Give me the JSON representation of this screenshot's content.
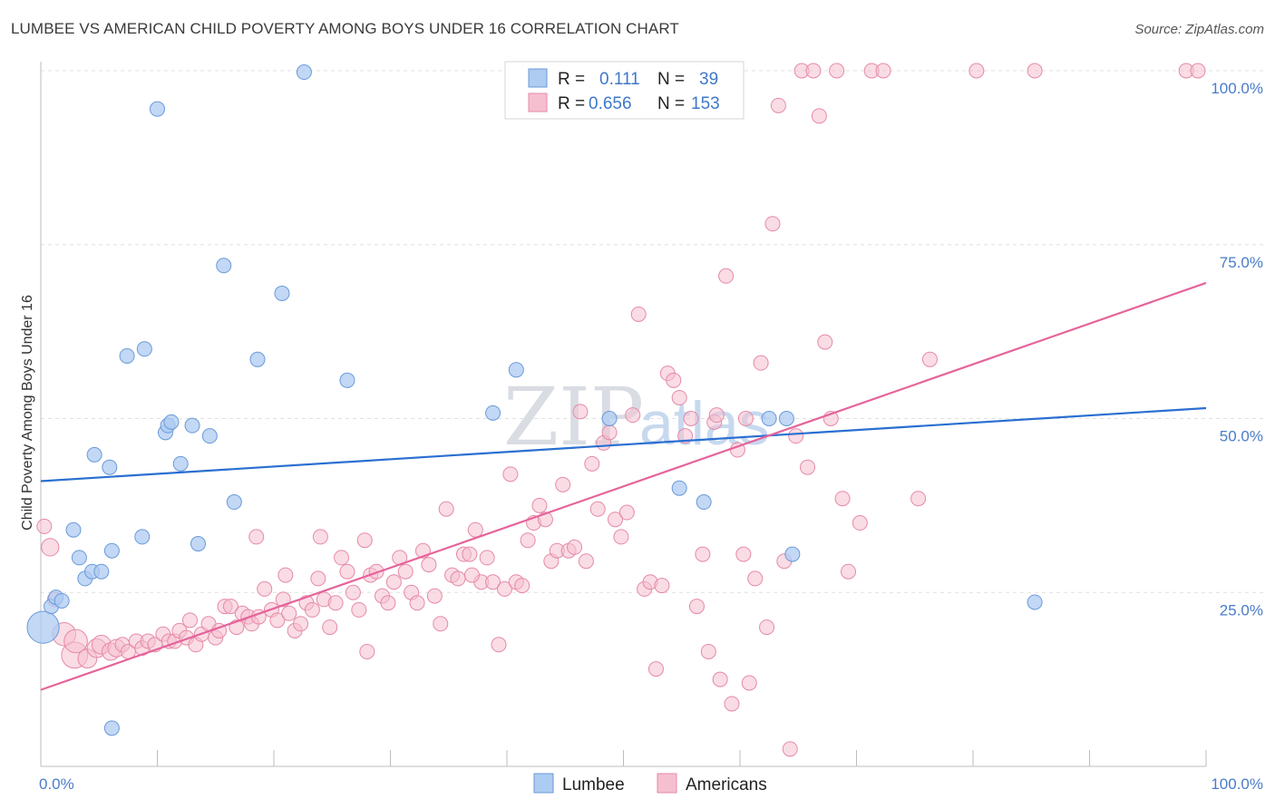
{
  "header": {
    "title": "LUMBEE VS AMERICAN CHILD POVERTY AMONG BOYS UNDER 16 CORRELATION CHART",
    "source": "Source: ZipAtlas.com"
  },
  "legend_box": {
    "rows": [
      {
        "r_label": "R =",
        "r_value": "0.111",
        "n_label": "N =",
        "n_value": "39"
      },
      {
        "r_label": "R =",
        "r_value": "0.656",
        "n_label": "N =",
        "n_value": "153"
      }
    ]
  },
  "bottom_legend": [
    "Lumbee",
    "Americans"
  ],
  "watermark": {
    "zip": "ZIP",
    "atlas": "atlas"
  },
  "colors": {
    "lumbee_fill": "#aecbf1",
    "lumbee_stroke": "#6a9ad9",
    "lumbee_line": "#2a6fd1",
    "americans_fill": "#f6bfd0",
    "americans_stroke": "#e58aa8",
    "americans_line": "#e5649a",
    "tick_text": "#4a7cc9",
    "grid": "#e0e0e0"
  },
  "chart_data": {
    "type": "scatter",
    "title": "LUMBEE VS AMERICAN CHILD POVERTY AMONG BOYS UNDER 16 CORRELATION CHART",
    "xlabel": "",
    "ylabel": "Child Poverty Among Boys Under 16",
    "xlim": [
      0,
      100
    ],
    "ylim": [
      0,
      100
    ],
    "x_tick_labels": [
      "0.0%",
      "100.0%"
    ],
    "y_tick_labels": [
      "25.0%",
      "50.0%",
      "75.0%",
      "100.0%"
    ],
    "y_ticks": [
      25,
      50,
      75,
      100
    ],
    "grid": "horizontal dashed",
    "legend_position": "bottom",
    "series": [
      {
        "name": "Lumbee",
        "R": 0.111,
        "N": 39,
        "trend": {
          "x": [
            0,
            100
          ],
          "y": [
            41,
            51.5
          ]
        },
        "points": [
          [
            0.2,
            20,
            2.2
          ],
          [
            0.9,
            23,
            1
          ],
          [
            1.3,
            24.3,
            1
          ],
          [
            1.8,
            23.8,
            1
          ],
          [
            3.3,
            30,
            1
          ],
          [
            2.8,
            34,
            1
          ],
          [
            4.6,
            44.8,
            1
          ],
          [
            3.8,
            27,
            1
          ],
          [
            4.4,
            28,
            1
          ],
          [
            5.2,
            28,
            1
          ],
          [
            6.1,
            31,
            1
          ],
          [
            5.9,
            43,
            1
          ],
          [
            7.4,
            59,
            1
          ],
          [
            8.7,
            33,
            1
          ],
          [
            8.9,
            60,
            1
          ],
          [
            10.0,
            94.5,
            1
          ],
          [
            10.7,
            48,
            1
          ],
          [
            10.9,
            49,
            1
          ],
          [
            11.2,
            49.5,
            1
          ],
          [
            12.0,
            43.5,
            1
          ],
          [
            13.0,
            49,
            1
          ],
          [
            13.5,
            32,
            1
          ],
          [
            14.5,
            47.5,
            1
          ],
          [
            15.7,
            72,
            1
          ],
          [
            16.6,
            38,
            1
          ],
          [
            18.6,
            58.5,
            1
          ],
          [
            20.7,
            68,
            1
          ],
          [
            22.6,
            99.8,
            1
          ],
          [
            26.3,
            55.5,
            1
          ],
          [
            38.8,
            50.8,
            1
          ],
          [
            40.8,
            57,
            1
          ],
          [
            48.8,
            50,
            1
          ],
          [
            54.8,
            40,
            1
          ],
          [
            56.9,
            38,
            1
          ],
          [
            62.5,
            50,
            1
          ],
          [
            64.0,
            50,
            1
          ],
          [
            64.5,
            30.5,
            1
          ],
          [
            85.3,
            23.6,
            1
          ],
          [
            6.1,
            5.5,
            1
          ]
        ]
      },
      {
        "name": "Americans",
        "R": 0.656,
        "N": 153,
        "trend": {
          "x": [
            0,
            100
          ],
          "y": [
            11,
            69.5
          ]
        },
        "points": [
          [
            0.3,
            34.5,
            1
          ],
          [
            0.8,
            31.5,
            1.2
          ],
          [
            1.2,
            24,
            1
          ],
          [
            2.0,
            19,
            1.6
          ],
          [
            2.9,
            16,
            1.8
          ],
          [
            3.0,
            18,
            1.6
          ],
          [
            4.0,
            15.5,
            1.3
          ],
          [
            4.8,
            17,
            1.3
          ],
          [
            5.2,
            17.5,
            1.3
          ],
          [
            6.0,
            16.5,
            1.2
          ],
          [
            6.5,
            17,
            1.2
          ],
          [
            7.0,
            17.5,
            1
          ],
          [
            7.5,
            16.5,
            1
          ],
          [
            8.2,
            18,
            1
          ],
          [
            8.7,
            17,
            1
          ],
          [
            9.2,
            18,
            1
          ],
          [
            9.8,
            17.5,
            1
          ],
          [
            10.5,
            19,
            1
          ],
          [
            11.0,
            18,
            1
          ],
          [
            11.5,
            18,
            1
          ],
          [
            11.9,
            19.5,
            1
          ],
          [
            12.5,
            18.5,
            1
          ],
          [
            12.8,
            21,
            1
          ],
          [
            13.3,
            17.5,
            1
          ],
          [
            13.8,
            19,
            1
          ],
          [
            14.4,
            20.5,
            1
          ],
          [
            15.0,
            18.5,
            1
          ],
          [
            15.3,
            19.5,
            1
          ],
          [
            15.8,
            23,
            1
          ],
          [
            16.3,
            23,
            1
          ],
          [
            16.8,
            20,
            1
          ],
          [
            17.3,
            22,
            1
          ],
          [
            17.8,
            21.5,
            1
          ],
          [
            18.1,
            20.5,
            1
          ],
          [
            18.7,
            21.5,
            1
          ],
          [
            19.2,
            25.5,
            1
          ],
          [
            19.8,
            22.5,
            1
          ],
          [
            20.3,
            21,
            1
          ],
          [
            20.8,
            24,
            1
          ],
          [
            21.3,
            22,
            1
          ],
          [
            21.8,
            19.5,
            1
          ],
          [
            22.3,
            20.5,
            1
          ],
          [
            22.8,
            23.5,
            1
          ],
          [
            23.3,
            22.5,
            1
          ],
          [
            23.8,
            27,
            1
          ],
          [
            24.3,
            24,
            1
          ],
          [
            24.8,
            20,
            1
          ],
          [
            25.3,
            23.5,
            1
          ],
          [
            25.8,
            30,
            1
          ],
          [
            26.3,
            28,
            1
          ],
          [
            26.8,
            25,
            1
          ],
          [
            27.3,
            22.5,
            1
          ],
          [
            27.8,
            32.5,
            1
          ],
          [
            28.3,
            27.5,
            1
          ],
          [
            28.8,
            28,
            1
          ],
          [
            29.3,
            24.5,
            1
          ],
          [
            29.8,
            23.5,
            1
          ],
          [
            30.3,
            26.5,
            1
          ],
          [
            30.8,
            30,
            1
          ],
          [
            31.3,
            28,
            1
          ],
          [
            31.8,
            25,
            1
          ],
          [
            32.3,
            23.5,
            1
          ],
          [
            32.8,
            31,
            1
          ],
          [
            33.3,
            29,
            1
          ],
          [
            33.8,
            24.5,
            1
          ],
          [
            34.3,
            20.5,
            1
          ],
          [
            34.8,
            37,
            1
          ],
          [
            35.3,
            27.5,
            1
          ],
          [
            35.8,
            27,
            1
          ],
          [
            36.3,
            30.5,
            1
          ],
          [
            36.8,
            30.5,
            1
          ],
          [
            37.3,
            34,
            1
          ],
          [
            37.8,
            26.5,
            1
          ],
          [
            38.3,
            30,
            1
          ],
          [
            38.8,
            26.5,
            1
          ],
          [
            39.3,
            17.5,
            1
          ],
          [
            39.8,
            25.5,
            1
          ],
          [
            40.3,
            42,
            1
          ],
          [
            40.8,
            26.5,
            1
          ],
          [
            41.3,
            26,
            1
          ],
          [
            41.8,
            32.5,
            1
          ],
          [
            42.3,
            35,
            1
          ],
          [
            42.8,
            37.5,
            1
          ],
          [
            43.3,
            35.5,
            1
          ],
          [
            43.8,
            29.5,
            1
          ],
          [
            44.3,
            31,
            1
          ],
          [
            44.8,
            40.5,
            1
          ],
          [
            45.3,
            31,
            1
          ],
          [
            45.8,
            31.5,
            1
          ],
          [
            46.3,
            51,
            1
          ],
          [
            46.8,
            29.5,
            1
          ],
          [
            47.3,
            43.5,
            1
          ],
          [
            47.8,
            37,
            1
          ],
          [
            48.3,
            46.5,
            1
          ],
          [
            48.8,
            48,
            1
          ],
          [
            49.3,
            35.5,
            1
          ],
          [
            49.8,
            33,
            1
          ],
          [
            50.3,
            36.5,
            1
          ],
          [
            50.8,
            50.5,
            1
          ],
          [
            51.3,
            65,
            1
          ],
          [
            51.8,
            25.5,
            1
          ],
          [
            52.3,
            26.5,
            1
          ],
          [
            52.8,
            14,
            1
          ],
          [
            53.3,
            26,
            1
          ],
          [
            53.8,
            56.5,
            1
          ],
          [
            54.3,
            55.5,
            1
          ],
          [
            54.8,
            53,
            1
          ],
          [
            55.3,
            47.5,
            1
          ],
          [
            55.8,
            50,
            1
          ],
          [
            56.3,
            23,
            1
          ],
          [
            56.8,
            30.5,
            1
          ],
          [
            57.3,
            16.5,
            1
          ],
          [
            57.8,
            49.5,
            1
          ],
          [
            58.3,
            12.5,
            1
          ],
          [
            58.8,
            70.5,
            1
          ],
          [
            59.3,
            9,
            1
          ],
          [
            59.8,
            45.5,
            1
          ],
          [
            60.3,
            30.5,
            1
          ],
          [
            60.8,
            12,
            1
          ],
          [
            61.3,
            27,
            1
          ],
          [
            61.8,
            58,
            1
          ],
          [
            62.3,
            20,
            1
          ],
          [
            62.8,
            78,
            1
          ],
          [
            63.3,
            95,
            1
          ],
          [
            63.8,
            29.5,
            1
          ],
          [
            64.3,
            2.5,
            1
          ],
          [
            64.8,
            47.5,
            1
          ],
          [
            65.3,
            100,
            1
          ],
          [
            65.8,
            43,
            1
          ],
          [
            66.3,
            100,
            1
          ],
          [
            66.8,
            93.5,
            1
          ],
          [
            67.3,
            61,
            1
          ],
          [
            67.8,
            50,
            1
          ],
          [
            68.3,
            100,
            1
          ],
          [
            68.8,
            38.5,
            1
          ],
          [
            69.3,
            28,
            1
          ],
          [
            70.3,
            35,
            1
          ],
          [
            71.3,
            100,
            1
          ],
          [
            72.3,
            100,
            1
          ],
          [
            75.3,
            38.5,
            1
          ],
          [
            76.3,
            58.5,
            1
          ],
          [
            80.3,
            100,
            1
          ],
          [
            85.3,
            100,
            1
          ],
          [
            98.3,
            100,
            1
          ],
          [
            99.3,
            100,
            1
          ],
          [
            60.5,
            50,
            1
          ],
          [
            58.0,
            50.5,
            1
          ],
          [
            52.0,
            100,
            1
          ],
          [
            37.0,
            27.5,
            1
          ],
          [
            28.0,
            16.5,
            1
          ],
          [
            24.0,
            33,
            1
          ],
          [
            21.0,
            27.5,
            1
          ],
          [
            18.5,
            33,
            1
          ]
        ]
      }
    ]
  }
}
